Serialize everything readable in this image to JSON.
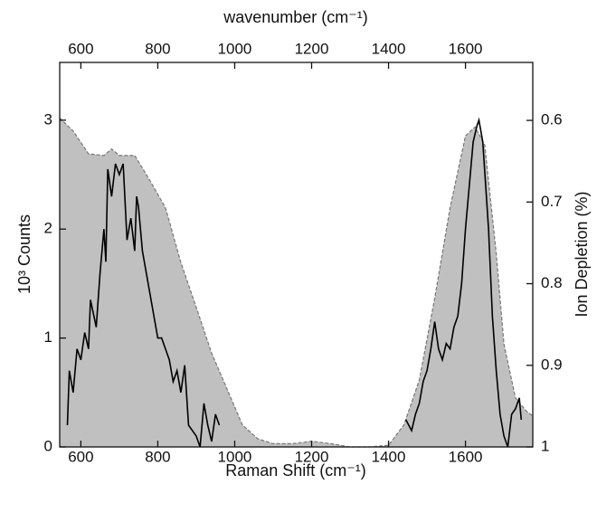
{
  "chart_data": {
    "type": "line",
    "xlabel": "Raman Shift (cm⁻¹)",
    "x2label": "wavenumber (cm⁻¹)",
    "ylabel": "10³ Counts",
    "y2label": "Ion Depletion (%)",
    "xlim": [
      545,
      1775
    ],
    "xticks": [
      600,
      800,
      1000,
      1200,
      1400,
      1600
    ],
    "x2lim": [
      545,
      1775
    ],
    "x2ticks": [
      600,
      800,
      1000,
      1200,
      1400,
      1600
    ],
    "ylim": [
      0,
      3.53
    ],
    "yticks": [
      0,
      1,
      2,
      3
    ],
    "y2lim": [
      1,
      0.529
    ],
    "y2ticks": [
      0.6,
      0.7,
      0.8,
      0.9,
      1
    ],
    "series": [
      {
        "name": "Ion Depletion",
        "axis": "y2",
        "style": "area",
        "color": "#c0c0c0",
        "x": [
          545,
          580,
          620,
          660,
          680,
          700,
          740,
          780,
          820,
          860,
          900,
          940,
          980,
          1020,
          1060,
          1100,
          1150,
          1200,
          1250,
          1300,
          1350,
          1400,
          1440,
          1480,
          1520,
          1560,
          1600,
          1625,
          1650,
          1680,
          1700,
          1730,
          1760,
          1775
        ],
        "values": [
          0.597,
          0.613,
          0.641,
          0.643,
          0.635,
          0.643,
          0.643,
          0.674,
          0.707,
          0.774,
          0.829,
          0.885,
          0.929,
          0.973,
          0.99,
          0.996,
          0.996,
          0.993,
          0.996,
          1,
          1,
          0.998,
          0.973,
          0.918,
          0.818,
          0.707,
          0.619,
          0.608,
          0.63,
          0.763,
          0.874,
          0.94,
          0.957,
          0.962
        ]
      },
      {
        "name": "Raman",
        "axis": "y",
        "style": "line",
        "color": "#000000",
        "x": [
          565,
          570,
          580,
          590,
          600,
          610,
          620,
          625,
          640,
          650,
          660,
          665,
          670,
          680,
          690,
          700,
          710,
          720,
          730,
          740,
          745,
          750,
          760,
          770,
          780,
          790,
          800,
          810,
          820,
          830,
          840,
          850,
          860,
          870,
          880,
          890,
          900,
          910,
          920,
          930,
          940,
          950,
          960,
          1200,
          1445,
          1460,
          1470,
          1480,
          1490,
          1500,
          1510,
          1520,
          1530,
          1540,
          1550,
          1560,
          1570,
          1580,
          1590,
          1600,
          1610,
          1620,
          1630,
          1635,
          1645,
          1660,
          1670,
          1680,
          1690,
          1700,
          1710,
          1720,
          1730,
          1740,
          1745
        ],
        "values": [
          0.2,
          0.7,
          0.5,
          0.9,
          0.8,
          1.05,
          0.9,
          1.35,
          1.1,
          1.6,
          2.0,
          1.7,
          2.55,
          2.3,
          2.6,
          2.5,
          2.6,
          1.9,
          2.1,
          1.8,
          2.3,
          2.2,
          1.8,
          1.6,
          1.4,
          1.2,
          1.0,
          1.0,
          0.9,
          0.8,
          0.6,
          0.7,
          0.5,
          0.75,
          0.2,
          0.15,
          0.1,
          0.0,
          0.4,
          0.2,
          0.05,
          0.3,
          0.2,
          null,
          0.25,
          0.15,
          0.3,
          0.4,
          0.6,
          0.7,
          0.9,
          1.15,
          0.9,
          0.8,
          0.95,
          0.9,
          1.1,
          1.2,
          1.5,
          2.0,
          2.4,
          2.8,
          2.95,
          3.0,
          2.8,
          2.0,
          1.2,
          0.7,
          0.3,
          0.1,
          0.0,
          0.3,
          0.35,
          0.45,
          0.25
        ]
      }
    ]
  }
}
